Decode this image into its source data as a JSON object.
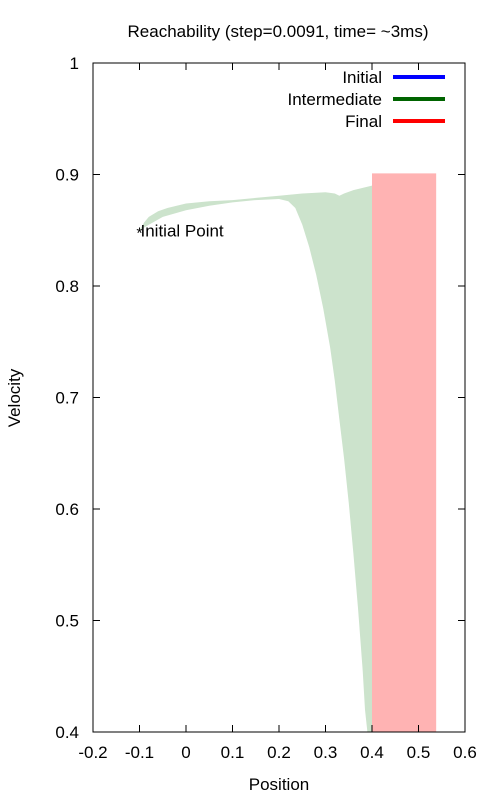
{
  "chart_data": {
    "type": "area",
    "title": "Reachability (step=0.0091, time= ~3ms)",
    "xlabel": "Position",
    "ylabel": "Velocity",
    "xlim": [
      -0.2,
      0.6
    ],
    "ylim": [
      0.4,
      1.0
    ],
    "xticks": [
      -0.2,
      -0.1,
      0,
      0.1,
      0.2,
      0.3,
      0.4,
      0.5,
      0.6
    ],
    "xtick_labels": [
      "-0.2",
      "-0.1",
      "0",
      "0.1",
      "0.2",
      "0.3",
      "0.4",
      "0.5",
      "0.6"
    ],
    "yticks": [
      0.4,
      0.5,
      0.6,
      0.7,
      0.8,
      0.9,
      1.0
    ],
    "ytick_labels": [
      "0.4",
      "0.5",
      "0.6",
      "0.7",
      "0.8",
      "0.9",
      "1"
    ],
    "grid": false,
    "legend_position": "top-right",
    "series": [
      {
        "name": "Initial",
        "color": "#0000ff"
      },
      {
        "name": "Intermediate",
        "color": "#006400"
      },
      {
        "name": "Final",
        "color": "#ff0000"
      }
    ],
    "intermediate_region": {
      "fill": "#cce3cc",
      "upper_boundary": [
        [
          -0.1,
          0.85
        ],
        [
          -0.09,
          0.857
        ],
        [
          -0.08,
          0.862
        ],
        [
          -0.06,
          0.867
        ],
        [
          -0.04,
          0.87
        ],
        [
          -0.02,
          0.872
        ],
        [
          0.0,
          0.874
        ],
        [
          0.05,
          0.876
        ],
        [
          0.1,
          0.877
        ],
        [
          0.15,
          0.879
        ],
        [
          0.2,
          0.881
        ],
        [
          0.25,
          0.883
        ],
        [
          0.3,
          0.884
        ],
        [
          0.32,
          0.883
        ],
        [
          0.33,
          0.881
        ],
        [
          0.34,
          0.883
        ],
        [
          0.36,
          0.886
        ],
        [
          0.38,
          0.888
        ],
        [
          0.4,
          0.89
        ]
      ],
      "lower_boundary": [
        [
          -0.1,
          0.85
        ],
        [
          -0.08,
          0.855
        ],
        [
          -0.05,
          0.862
        ],
        [
          0.0,
          0.868
        ],
        [
          0.05,
          0.872
        ],
        [
          0.1,
          0.875
        ],
        [
          0.15,
          0.877
        ],
        [
          0.2,
          0.878
        ],
        [
          0.22,
          0.876
        ],
        [
          0.235,
          0.87
        ],
        [
          0.25,
          0.855
        ],
        [
          0.265,
          0.835
        ],
        [
          0.28,
          0.81
        ],
        [
          0.295,
          0.78
        ],
        [
          0.31,
          0.745
        ],
        [
          0.32,
          0.715
        ],
        [
          0.33,
          0.68
        ],
        [
          0.34,
          0.645
        ],
        [
          0.35,
          0.605
        ],
        [
          0.36,
          0.56
        ],
        [
          0.37,
          0.51
        ],
        [
          0.38,
          0.455
        ],
        [
          0.385,
          0.42
        ],
        [
          0.39,
          0.4
        ],
        [
          0.4,
          0.4
        ]
      ]
    },
    "final_region": {
      "fill": "#ffb3b3",
      "x": [
        0.4,
        0.538
      ],
      "y": [
        0.4,
        0.901
      ]
    },
    "initial_point": {
      "x": -0.1,
      "y": 0.85,
      "marker": "*",
      "color": "#0000cc",
      "label": "Initial Point"
    }
  }
}
